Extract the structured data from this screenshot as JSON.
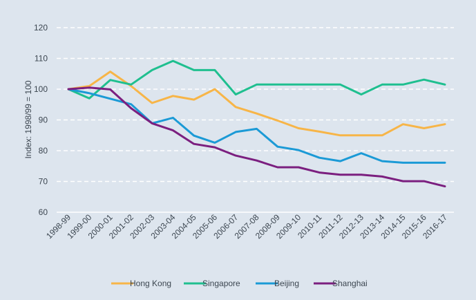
{
  "chart_data": {
    "type": "line",
    "title": "",
    "xlabel": "",
    "ylabel": "Index: 1998/99 = 100",
    "ylim": [
      60,
      120
    ],
    "yticks": [
      60,
      70,
      80,
      90,
      100,
      110,
      120
    ],
    "grid": "horizontal dashed",
    "legend_position": "bottom",
    "categories": [
      "1998-99",
      "1999-00",
      "2000-01",
      "2001-02",
      "2002-03",
      "2003-04",
      "2004-05",
      "2005-06",
      "2006-07",
      "2007-08",
      "2008-09",
      "2009-10",
      "2010-11",
      "2011-12",
      "2012-13",
      "2013-14",
      "2014-15",
      "2015-16",
      "2016-17"
    ],
    "series": [
      {
        "name": "Hong Kong",
        "color": "#f7b548",
        "values": [
          100,
          101,
          105.7,
          101,
          95.5,
          97.8,
          96.6,
          100,
          94.2,
          92.1,
          89.8,
          87.3,
          86.2,
          85,
          85,
          85,
          88.6,
          87.3,
          88.6
        ]
      },
      {
        "name": "Singapore",
        "color": "#1fbf8f",
        "values": [
          100,
          97,
          103,
          101.5,
          106.2,
          109.2,
          106.2,
          106.2,
          98.3,
          101.5,
          101.5,
          101.5,
          101.5,
          101.5,
          98.3,
          101.5,
          101.5,
          103.1,
          101.5
        ]
      },
      {
        "name": "Beijing",
        "color": "#1b9ad6",
        "values": [
          100,
          98.7,
          96.9,
          95.1,
          88.9,
          90.7,
          84.9,
          82.6,
          86.1,
          87.1,
          81.3,
          80.2,
          77.7,
          76.6,
          79.2,
          76.6,
          76.1,
          76.1,
          76.1
        ]
      },
      {
        "name": "Shanghai",
        "color": "#7b1f7f",
        "values": [
          100,
          100.5,
          99.9,
          93.8,
          88.9,
          86.6,
          82.2,
          81.1,
          78.4,
          76.8,
          74.6,
          74.6,
          72.9,
          72.2,
          72.2,
          71.6,
          70.1,
          70.1,
          68.4
        ]
      }
    ]
  }
}
